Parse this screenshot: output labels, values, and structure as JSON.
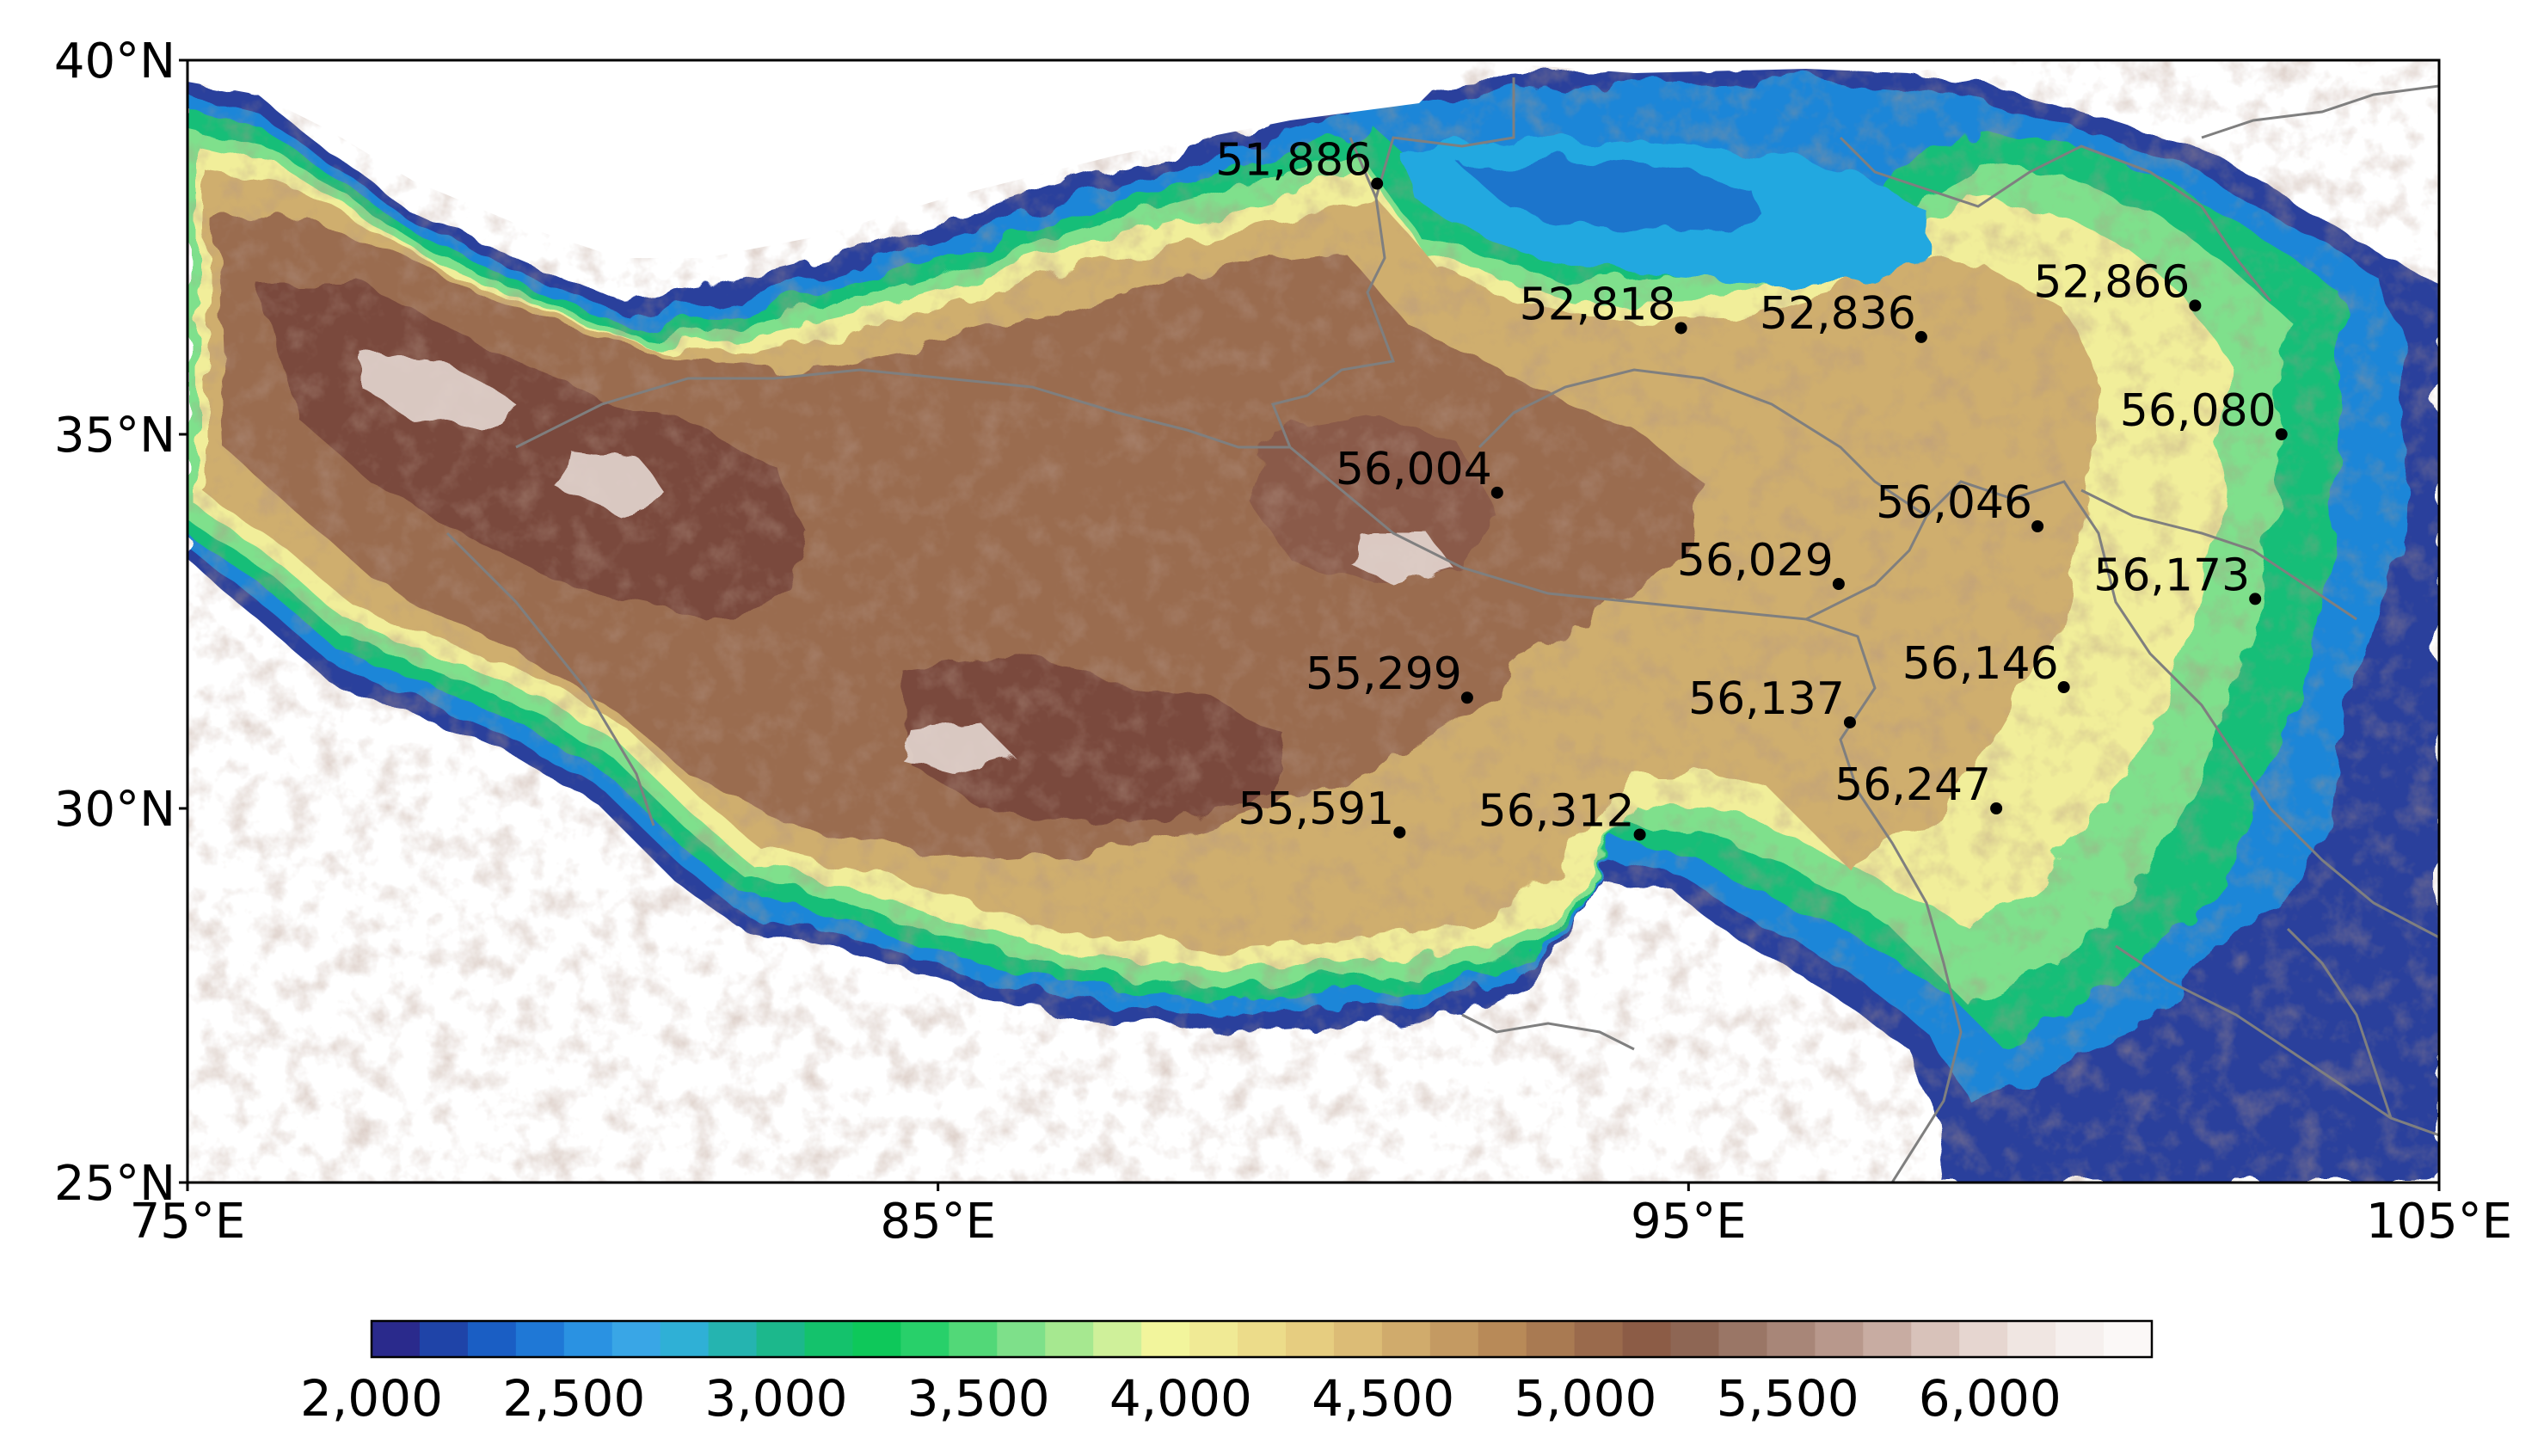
{
  "map": {
    "extent": {
      "lon": [
        75,
        105
      ],
      "lat": [
        25,
        40
      ]
    },
    "x_ticks": [
      {
        "lon": 75,
        "label": "75°E"
      },
      {
        "lon": 85,
        "label": "85°E"
      },
      {
        "lon": 95,
        "label": "95°E"
      },
      {
        "lon": 105,
        "label": "105°E"
      }
    ],
    "y_ticks": [
      {
        "lat": 40,
        "label": "40°N"
      },
      {
        "lat": 35,
        "label": "35°N"
      },
      {
        "lat": 30,
        "label": "30°N"
      },
      {
        "lat": 25,
        "label": "25°N"
      }
    ],
    "stations": [
      {
        "id": "51,886",
        "lon": 90.85,
        "lat": 38.35
      },
      {
        "id": "52,818",
        "lon": 94.9,
        "lat": 36.42
      },
      {
        "id": "52,836",
        "lon": 98.1,
        "lat": 36.3
      },
      {
        "id": "52,866",
        "lon": 101.75,
        "lat": 36.72
      },
      {
        "id": "56,080",
        "lon": 102.9,
        "lat": 35.0
      },
      {
        "id": "56,004",
        "lon": 92.45,
        "lat": 34.22
      },
      {
        "id": "56,046",
        "lon": 99.65,
        "lat": 33.77
      },
      {
        "id": "56,029",
        "lon": 97.0,
        "lat": 33.0
      },
      {
        "id": "56,173",
        "lon": 102.55,
        "lat": 32.8
      },
      {
        "id": "55,299",
        "lon": 92.05,
        "lat": 31.48
      },
      {
        "id": "56,146",
        "lon": 100.0,
        "lat": 31.62
      },
      {
        "id": "56,137",
        "lon": 97.15,
        "lat": 31.15
      },
      {
        "id": "56,247",
        "lon": 99.1,
        "lat": 30.0
      },
      {
        "id": "55,591",
        "lon": 91.15,
        "lat": 29.68
      },
      {
        "id": "56,312",
        "lon": 94.35,
        "lat": 29.65
      }
    ]
  },
  "colorbar": {
    "min": 2000,
    "max": 6400,
    "step": 100,
    "colors": [
      "#2a2a8c",
      "#1f44a8",
      "#1a5ec4",
      "#1f78d6",
      "#2a92e2",
      "#39a6e6",
      "#2fb0d6",
      "#25b4b0",
      "#1cb88c",
      "#14c26c",
      "#0ec85a",
      "#28d06a",
      "#52d878",
      "#7ee08a",
      "#a6e890",
      "#cff09a",
      "#f2f59c",
      "#f0ea95",
      "#ecdc8a",
      "#e6cd80",
      "#dcbc76",
      "#d0ab6c",
      "#c49a62",
      "#b88a58",
      "#a97a52",
      "#9a6a4c",
      "#8c5c46",
      "#8e6654",
      "#9a7666",
      "#a88678",
      "#b8988c",
      "#c8aca2",
      "#d8c2ba",
      "#e6d6d0",
      "#f0e6e2",
      "#f6f0ee",
      "#fbf8f7"
    ],
    "tick_labels": [
      {
        "value": 2000,
        "label": "2,000"
      },
      {
        "value": 2500,
        "label": "2,500"
      },
      {
        "value": 3000,
        "label": "3,000"
      },
      {
        "value": 3500,
        "label": "3,500"
      },
      {
        "value": 4000,
        "label": "4,000"
      },
      {
        "value": 4500,
        "label": "4,500"
      },
      {
        "value": 5000,
        "label": "5,000"
      },
      {
        "value": 5500,
        "label": "5,500"
      },
      {
        "value": 6000,
        "label": "6,000"
      }
    ]
  }
}
